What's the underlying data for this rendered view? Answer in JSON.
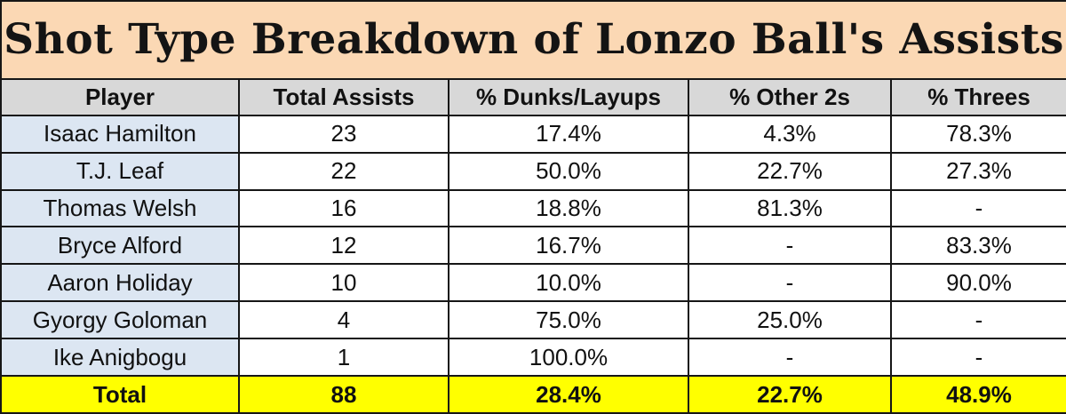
{
  "title": "Shot Type Breakdown of Lonzo Ball's Assists",
  "colors": {
    "title_bg": "#fbd8b4",
    "header_bg": "#d8d8d8",
    "player_col_bg": "#dce6f2",
    "total_row_bg": "#ffff00",
    "border": "#161616",
    "text": "#111111"
  },
  "chart_data": {
    "type": "table",
    "title": "Shot Type Breakdown of Lonzo Ball's Assists",
    "columns": [
      "Player",
      "Total Assists",
      "% Dunks/Layups",
      "% Other 2s",
      "% Threes"
    ],
    "rows": [
      [
        "Isaac Hamilton",
        "23",
        "17.4%",
        "4.3%",
        "78.3%"
      ],
      [
        "T.J. Leaf",
        "22",
        "50.0%",
        "22.7%",
        "27.3%"
      ],
      [
        "Thomas Welsh",
        "16",
        "18.8%",
        "81.3%",
        "-"
      ],
      [
        "Bryce Alford",
        "12",
        "16.7%",
        "-",
        "83.3%"
      ],
      [
        "Aaron Holiday",
        "10",
        "10.0%",
        "-",
        "90.0%"
      ],
      [
        "Gyorgy Goloman",
        "4",
        "75.0%",
        "25.0%",
        "-"
      ],
      [
        "Ike Anigbogu",
        "1",
        "100.0%",
        "-",
        "-"
      ]
    ],
    "total_row": [
      "Total",
      "88",
      "28.4%",
      "22.7%",
      "48.9%"
    ]
  }
}
